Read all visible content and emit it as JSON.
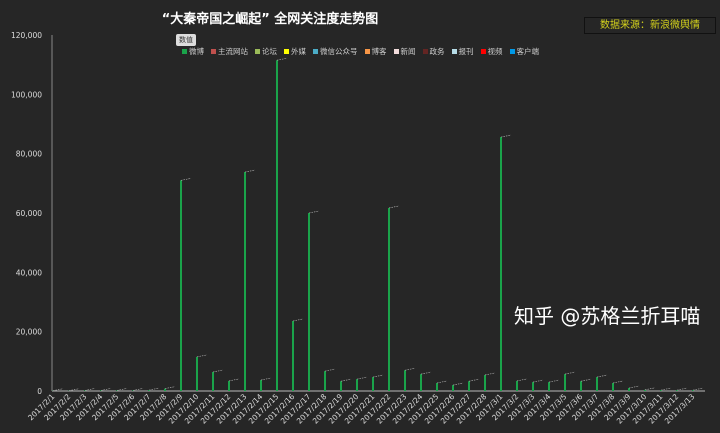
{
  "title": "“大秦帝国之崛起”  全网关注度走势图",
  "source_label": "数据来源：新浪微舆情",
  "value_button": "数值",
  "watermark": "知乎 @苏格兰折耳喵",
  "legend": [
    {
      "label": "微博",
      "color": "#1aa34a"
    },
    {
      "label": "主流网站",
      "color": "#c0504d"
    },
    {
      "label": "论坛",
      "color": "#9bbb59"
    },
    {
      "label": "外媒",
      "color": "#ffff00"
    },
    {
      "label": "微信公众号",
      "color": "#4bacc6"
    },
    {
      "label": "博客",
      "color": "#f79646"
    },
    {
      "label": "新闻",
      "color": "#f2dcdb"
    },
    {
      "label": "政务",
      "color": "#632523"
    },
    {
      "label": "报刊",
      "color": "#b7dde8"
    },
    {
      "label": "视频",
      "color": "#ff0000"
    },
    {
      "label": "客户端",
      "color": "#0099e6"
    }
  ],
  "chart_data": {
    "type": "bar",
    "title": "“大秦帝国之崛起”  全网关注度走势图",
    "ylim": [
      0,
      120000
    ],
    "yticks": [
      "0",
      "20,000",
      "40,000",
      "60,000",
      "80,000",
      "100,000",
      "120,000"
    ],
    "grid": false,
    "legend_position": "top",
    "categories": [
      "2017/2/1",
      "2017/2/2",
      "2017/2/3",
      "2017/2/4",
      "2017/2/5",
      "2017/2/6",
      "2017/2/7",
      "2017/2/8",
      "2017/2/9",
      "2017/2/10",
      "2017/2/11",
      "2017/2/12",
      "2017/2/13",
      "2017/2/14",
      "2017/2/15",
      "2017/2/16",
      "2017/2/17",
      "2017/2/18",
      "2017/2/19",
      "2017/2/20",
      "2017/2/21",
      "2017/2/22",
      "2017/2/23",
      "2017/2/24",
      "2017/2/25",
      "2017/2/26",
      "2017/2/27",
      "2017/2/28",
      "2017/3/1",
      "2017/3/2",
      "2017/3/3",
      "2017/3/4",
      "2017/3/5",
      "2017/3/6",
      "2017/3/7",
      "2017/3/8",
      "2017/3/9",
      "2017/3/10",
      "2017/3/11",
      "2017/3/12",
      "2017/3/13"
    ],
    "series": [
      {
        "name": "微博",
        "color": "#1aa34a",
        "values": [
          100,
          100,
          200,
          200,
          200,
          200,
          300,
          800,
          71000,
          11500,
          6400,
          3400,
          73800,
          3700,
          111500,
          23600,
          60000,
          6700,
          3300,
          4000,
          4700,
          61700,
          7000,
          5700,
          2700,
          2000,
          3300,
          5400,
          85600,
          3400,
          3000,
          3000,
          5700,
          3300,
          4700,
          2700,
          1000,
          400,
          300,
          300,
          300
        ]
      }
    ]
  }
}
